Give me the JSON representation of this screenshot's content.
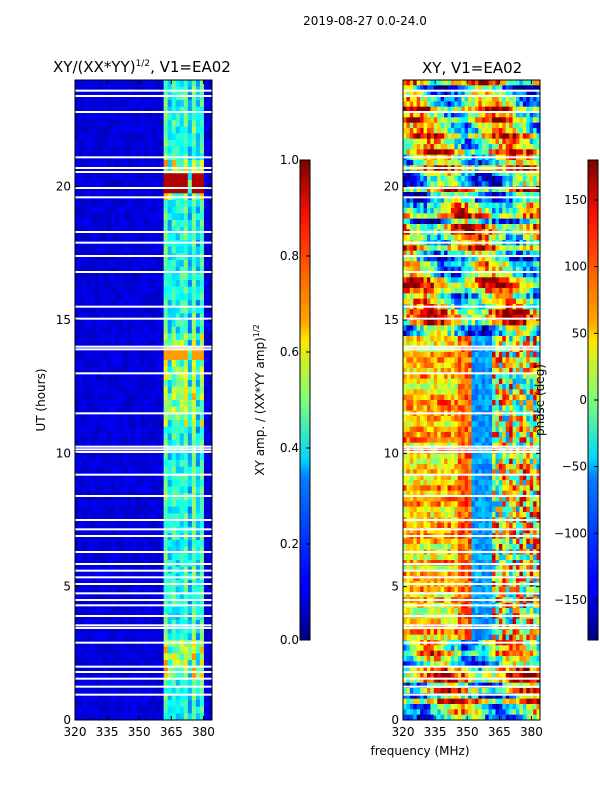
{
  "page": {
    "suptitle": "2019-08-27 0.0-24.0",
    "xlabel_shared": "frequency (MHz)"
  },
  "chart_data": [
    {
      "type": "heatmap",
      "title": "XY/(XX*YY)^1/2, V1=EA02",
      "title_parts": {
        "main": "XY/(XX*YY)",
        "sup": "1/2",
        "rest": ", V1=EA02"
      },
      "xlabel": "",
      "ylabel": "UT (hours)",
      "xlim": [
        320,
        384
      ],
      "ylim": [
        0,
        24
      ],
      "xticks": [
        320,
        335,
        350,
        365,
        380
      ],
      "yticks": [
        0,
        5,
        10,
        15,
        20
      ],
      "colorbar": {
        "label": "XY amp. / (XX*YY amp)^1/2",
        "label_parts": {
          "main": "XY amp. / (XX*YY amp)",
          "sup": "1/2"
        },
        "range": [
          0.0,
          1.0
        ],
        "ticks": [
          "0.0",
          "0.2",
          "0.4",
          "0.6",
          "0.8",
          "1.0"
        ],
        "colormap": "jet"
      },
      "background_value": 0.06,
      "active_band_mhz": [
        361,
        381
      ],
      "flagged_rows_hours": [
        0.95,
        1.25,
        1.55,
        1.8,
        2.0,
        2.9,
        3.45,
        3.55,
        3.9,
        4.3,
        4.5,
        4.75,
        5.1,
        5.35,
        5.6,
        5.85,
        6.3,
        6.9,
        7.15,
        7.5,
        8.4,
        9.2,
        10.05,
        10.15,
        10.25,
        11.5,
        13.0,
        13.9,
        14.0,
        15.05,
        15.5,
        16.8,
        17.4,
        17.9,
        18.3,
        19.6,
        19.95,
        20.55,
        20.7,
        21.1,
        22.8,
        23.4,
        23.6
      ]
    },
    {
      "type": "heatmap",
      "title": "XY, V1=EA02",
      "xlabel": "frequency (MHz)",
      "ylabel": "",
      "xlim": [
        320,
        384
      ],
      "ylim": [
        0,
        24
      ],
      "xticks": [
        320,
        335,
        350,
        365,
        380
      ],
      "yticks": [
        0,
        5,
        10,
        15,
        20
      ],
      "colorbar": {
        "label": "phase (deg)",
        "range": [
          -180,
          180
        ],
        "ticks": [
          "−150",
          "−100",
          "−50",
          "0",
          "50",
          "100",
          "150"
        ],
        "tick_values": [
          -150,
          -100,
          -50,
          0,
          50,
          100,
          150
        ],
        "colormap": "jet"
      },
      "flagged_rows_hours": [
        0.95,
        1.25,
        1.55,
        1.8,
        2.0,
        2.9,
        3.45,
        3.55,
        3.9,
        4.3,
        4.5,
        4.75,
        5.1,
        5.35,
        5.6,
        5.85,
        6.3,
        6.9,
        7.15,
        7.5,
        8.4,
        9.2,
        10.05,
        10.15,
        10.25,
        11.5,
        13.0,
        13.9,
        14.0,
        15.05,
        15.5,
        16.8,
        17.4,
        17.9,
        18.3,
        19.6,
        19.95,
        20.55,
        20.7,
        21.1,
        22.8,
        23.4,
        23.6
      ]
    }
  ]
}
